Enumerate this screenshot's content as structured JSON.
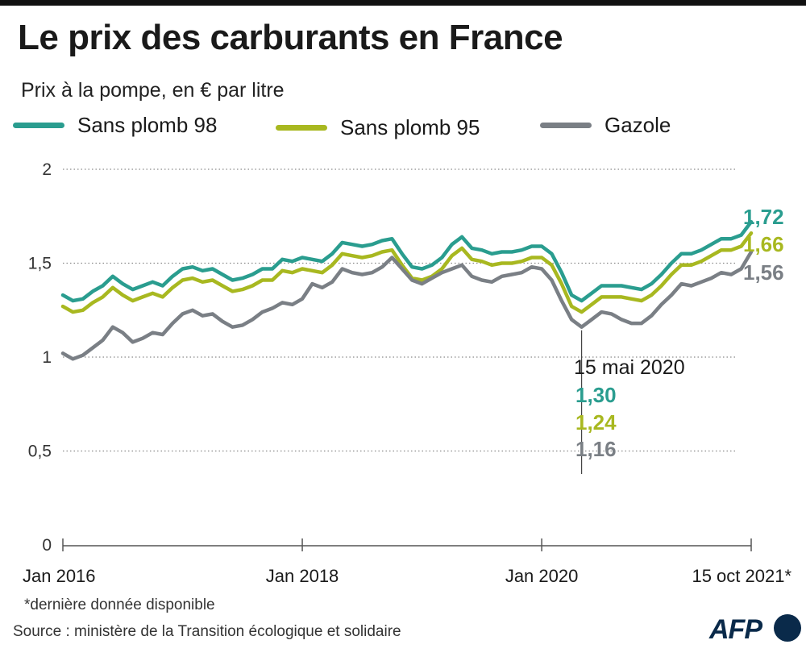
{
  "header": {
    "title": "Le prix des carburants en France",
    "subtitle": "Prix à la pompe, en € par litre"
  },
  "colors": {
    "sp98": "#2a9d8f",
    "sp95": "#a8b820",
    "gazole": "#7a7f85",
    "grid": "#8a8a8a",
    "axis": "#555555"
  },
  "chart_data": {
    "type": "line",
    "ylim": [
      0,
      2
    ],
    "yticks": [
      {
        "value": 0,
        "label": "0"
      },
      {
        "value": 0.5,
        "label": "0,5"
      },
      {
        "value": 1,
        "label": "1"
      },
      {
        "value": 1.5,
        "label": "1,5"
      },
      {
        "value": 2,
        "label": "2"
      }
    ],
    "xticks": [
      {
        "x": "2016-01",
        "label": "Jan 2016"
      },
      {
        "x": "2018-01",
        "label": "Jan 2018"
      },
      {
        "x": "2020-01",
        "label": "Jan 2020"
      },
      {
        "x": "2021-10",
        "label": "15 oct 2021*"
      }
    ],
    "grid": "dotted horizontal",
    "legend": "top",
    "series": [
      {
        "name": "Sans plomb 98",
        "key": "sp98",
        "last_label": "1,72",
        "points": [
          [
            "2016-01",
            1.33
          ],
          [
            "2016-02",
            1.3
          ],
          [
            "2016-03",
            1.31
          ],
          [
            "2016-04",
            1.35
          ],
          [
            "2016-05",
            1.38
          ],
          [
            "2016-06",
            1.43
          ],
          [
            "2016-07",
            1.39
          ],
          [
            "2016-08",
            1.36
          ],
          [
            "2016-09",
            1.38
          ],
          [
            "2016-10",
            1.4
          ],
          [
            "2016-11",
            1.38
          ],
          [
            "2016-12",
            1.43
          ],
          [
            "2017-01",
            1.47
          ],
          [
            "2017-02",
            1.48
          ],
          [
            "2017-03",
            1.46
          ],
          [
            "2017-04",
            1.47
          ],
          [
            "2017-05",
            1.44
          ],
          [
            "2017-06",
            1.41
          ],
          [
            "2017-07",
            1.42
          ],
          [
            "2017-08",
            1.44
          ],
          [
            "2017-09",
            1.47
          ],
          [
            "2017-10",
            1.47
          ],
          [
            "2017-11",
            1.52
          ],
          [
            "2017-12",
            1.51
          ],
          [
            "2018-01",
            1.53
          ],
          [
            "2018-02",
            1.52
          ],
          [
            "2018-03",
            1.51
          ],
          [
            "2018-04",
            1.55
          ],
          [
            "2018-05",
            1.61
          ],
          [
            "2018-06",
            1.6
          ],
          [
            "2018-07",
            1.59
          ],
          [
            "2018-08",
            1.6
          ],
          [
            "2018-09",
            1.62
          ],
          [
            "2018-10",
            1.63
          ],
          [
            "2018-11",
            1.55
          ],
          [
            "2018-12",
            1.48
          ],
          [
            "2019-01",
            1.47
          ],
          [
            "2019-02",
            1.49
          ],
          [
            "2019-03",
            1.53
          ],
          [
            "2019-04",
            1.6
          ],
          [
            "2019-05",
            1.64
          ],
          [
            "2019-06",
            1.58
          ],
          [
            "2019-07",
            1.57
          ],
          [
            "2019-08",
            1.55
          ],
          [
            "2019-09",
            1.56
          ],
          [
            "2019-10",
            1.56
          ],
          [
            "2019-11",
            1.57
          ],
          [
            "2019-12",
            1.59
          ],
          [
            "2020-01",
            1.59
          ],
          [
            "2020-02",
            1.55
          ],
          [
            "2020-03",
            1.45
          ],
          [
            "2020-04",
            1.33
          ],
          [
            "2020-05",
            1.3
          ],
          [
            "2020-06",
            1.34
          ],
          [
            "2020-07",
            1.38
          ],
          [
            "2020-08",
            1.38
          ],
          [
            "2020-09",
            1.38
          ],
          [
            "2020-10",
            1.37
          ],
          [
            "2020-11",
            1.36
          ],
          [
            "2020-12",
            1.39
          ],
          [
            "2021-01",
            1.44
          ],
          [
            "2021-02",
            1.5
          ],
          [
            "2021-03",
            1.55
          ],
          [
            "2021-04",
            1.55
          ],
          [
            "2021-05",
            1.57
          ],
          [
            "2021-06",
            1.6
          ],
          [
            "2021-07",
            1.63
          ],
          [
            "2021-08",
            1.63
          ],
          [
            "2021-09",
            1.65
          ],
          [
            "2021-10",
            1.72
          ]
        ]
      },
      {
        "name": "Sans plomb 95",
        "key": "sp95",
        "last_label": "1,66",
        "points": [
          [
            "2016-01",
            1.27
          ],
          [
            "2016-02",
            1.24
          ],
          [
            "2016-03",
            1.25
          ],
          [
            "2016-04",
            1.29
          ],
          [
            "2016-05",
            1.32
          ],
          [
            "2016-06",
            1.37
          ],
          [
            "2016-07",
            1.33
          ],
          [
            "2016-08",
            1.3
          ],
          [
            "2016-09",
            1.32
          ],
          [
            "2016-10",
            1.34
          ],
          [
            "2016-11",
            1.32
          ],
          [
            "2016-12",
            1.37
          ],
          [
            "2017-01",
            1.41
          ],
          [
            "2017-02",
            1.42
          ],
          [
            "2017-03",
            1.4
          ],
          [
            "2017-04",
            1.41
          ],
          [
            "2017-05",
            1.38
          ],
          [
            "2017-06",
            1.35
          ],
          [
            "2017-07",
            1.36
          ],
          [
            "2017-08",
            1.38
          ],
          [
            "2017-09",
            1.41
          ],
          [
            "2017-10",
            1.41
          ],
          [
            "2017-11",
            1.46
          ],
          [
            "2017-12",
            1.45
          ],
          [
            "2018-01",
            1.47
          ],
          [
            "2018-02",
            1.46
          ],
          [
            "2018-03",
            1.45
          ],
          [
            "2018-04",
            1.49
          ],
          [
            "2018-05",
            1.55
          ],
          [
            "2018-06",
            1.54
          ],
          [
            "2018-07",
            1.53
          ],
          [
            "2018-08",
            1.54
          ],
          [
            "2018-09",
            1.56
          ],
          [
            "2018-10",
            1.57
          ],
          [
            "2018-11",
            1.49
          ],
          [
            "2018-12",
            1.42
          ],
          [
            "2019-01",
            1.41
          ],
          [
            "2019-02",
            1.43
          ],
          [
            "2019-03",
            1.47
          ],
          [
            "2019-04",
            1.54
          ],
          [
            "2019-05",
            1.58
          ],
          [
            "2019-06",
            1.52
          ],
          [
            "2019-07",
            1.51
          ],
          [
            "2019-08",
            1.49
          ],
          [
            "2019-09",
            1.5
          ],
          [
            "2019-10",
            1.5
          ],
          [
            "2019-11",
            1.51
          ],
          [
            "2019-12",
            1.53
          ],
          [
            "2020-01",
            1.53
          ],
          [
            "2020-02",
            1.49
          ],
          [
            "2020-03",
            1.39
          ],
          [
            "2020-04",
            1.27
          ],
          [
            "2020-05",
            1.24
          ],
          [
            "2020-06",
            1.28
          ],
          [
            "2020-07",
            1.32
          ],
          [
            "2020-08",
            1.32
          ],
          [
            "2020-09",
            1.32
          ],
          [
            "2020-10",
            1.31
          ],
          [
            "2020-11",
            1.3
          ],
          [
            "2020-12",
            1.33
          ],
          [
            "2021-01",
            1.38
          ],
          [
            "2021-02",
            1.44
          ],
          [
            "2021-03",
            1.49
          ],
          [
            "2021-04",
            1.49
          ],
          [
            "2021-05",
            1.51
          ],
          [
            "2021-06",
            1.54
          ],
          [
            "2021-07",
            1.57
          ],
          [
            "2021-08",
            1.57
          ],
          [
            "2021-09",
            1.59
          ],
          [
            "2021-10",
            1.66
          ]
        ]
      },
      {
        "name": "Gazole",
        "key": "gazole",
        "last_label": "1,56",
        "points": [
          [
            "2016-01",
            1.02
          ],
          [
            "2016-02",
            0.99
          ],
          [
            "2016-03",
            1.01
          ],
          [
            "2016-04",
            1.05
          ],
          [
            "2016-05",
            1.09
          ],
          [
            "2016-06",
            1.16
          ],
          [
            "2016-07",
            1.13
          ],
          [
            "2016-08",
            1.08
          ],
          [
            "2016-09",
            1.1
          ],
          [
            "2016-10",
            1.13
          ],
          [
            "2016-11",
            1.12
          ],
          [
            "2016-12",
            1.18
          ],
          [
            "2017-01",
            1.23
          ],
          [
            "2017-02",
            1.25
          ],
          [
            "2017-03",
            1.22
          ],
          [
            "2017-04",
            1.23
          ],
          [
            "2017-05",
            1.19
          ],
          [
            "2017-06",
            1.16
          ],
          [
            "2017-07",
            1.17
          ],
          [
            "2017-08",
            1.2
          ],
          [
            "2017-09",
            1.24
          ],
          [
            "2017-10",
            1.26
          ],
          [
            "2017-11",
            1.29
          ],
          [
            "2017-12",
            1.28
          ],
          [
            "2018-01",
            1.31
          ],
          [
            "2018-02",
            1.39
          ],
          [
            "2018-03",
            1.37
          ],
          [
            "2018-04",
            1.4
          ],
          [
            "2018-05",
            1.47
          ],
          [
            "2018-06",
            1.45
          ],
          [
            "2018-07",
            1.44
          ],
          [
            "2018-08",
            1.45
          ],
          [
            "2018-09",
            1.48
          ],
          [
            "2018-10",
            1.53
          ],
          [
            "2018-11",
            1.47
          ],
          [
            "2018-12",
            1.41
          ],
          [
            "2019-01",
            1.39
          ],
          [
            "2019-02",
            1.42
          ],
          [
            "2019-03",
            1.45
          ],
          [
            "2019-04",
            1.47
          ],
          [
            "2019-05",
            1.49
          ],
          [
            "2019-06",
            1.43
          ],
          [
            "2019-07",
            1.41
          ],
          [
            "2019-08",
            1.4
          ],
          [
            "2019-09",
            1.43
          ],
          [
            "2019-10",
            1.44
          ],
          [
            "2019-11",
            1.45
          ],
          [
            "2019-12",
            1.48
          ],
          [
            "2020-01",
            1.47
          ],
          [
            "2020-02",
            1.41
          ],
          [
            "2020-03",
            1.3
          ],
          [
            "2020-04",
            1.2
          ],
          [
            "2020-05",
            1.16
          ],
          [
            "2020-06",
            1.2
          ],
          [
            "2020-07",
            1.24
          ],
          [
            "2020-08",
            1.23
          ],
          [
            "2020-09",
            1.2
          ],
          [
            "2020-10",
            1.18
          ],
          [
            "2020-11",
            1.18
          ],
          [
            "2020-12",
            1.22
          ],
          [
            "2021-01",
            1.28
          ],
          [
            "2021-02",
            1.33
          ],
          [
            "2021-03",
            1.39
          ],
          [
            "2021-04",
            1.38
          ],
          [
            "2021-05",
            1.4
          ],
          [
            "2021-06",
            1.42
          ],
          [
            "2021-07",
            1.45
          ],
          [
            "2021-08",
            1.44
          ],
          [
            "2021-09",
            1.47
          ],
          [
            "2021-10",
            1.56
          ]
        ]
      }
    ],
    "annotation": {
      "x": "2020-05",
      "label": "15 mai 2020",
      "values": [
        {
          "key": "sp98",
          "text": "1,30"
        },
        {
          "key": "sp95",
          "text": "1,24"
        },
        {
          "key": "gazole",
          "text": "1,16"
        }
      ]
    }
  },
  "footer": {
    "footnote": "*dernière donnée disponible",
    "source": "Source : ministère de la Transition écologique et solidaire",
    "logo": "AFP"
  }
}
